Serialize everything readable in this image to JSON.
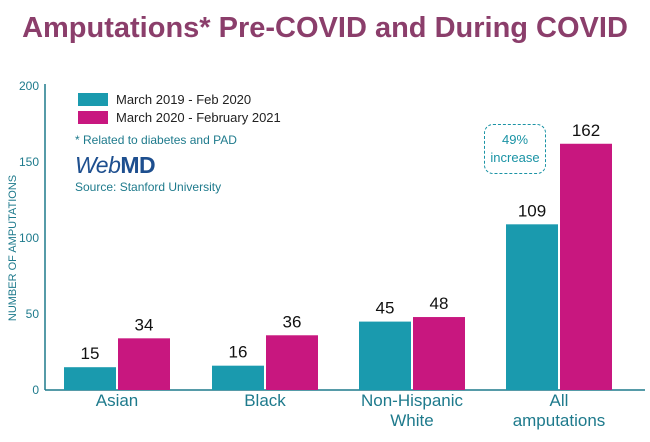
{
  "title": "Amputations* Pre-COVID and During COVID",
  "note": "* Related to diabetes and PAD",
  "logo": {
    "web": "Web",
    "md": "MD"
  },
  "source": "Source: Stanford University",
  "callout": {
    "line1": "49%",
    "line2": "increase"
  },
  "colors": {
    "series1": "#1a9aae",
    "series2": "#c8177f",
    "title": "#8b3e6b",
    "axis": "#1e7a8c"
  },
  "chart_data": {
    "type": "bar",
    "categories": [
      [
        "Asian"
      ],
      [
        "Black"
      ],
      [
        "Non-Hispanic",
        "White"
      ],
      [
        "All",
        "amputations"
      ]
    ],
    "series": [
      {
        "name": "March 2019 - Feb 2020",
        "values": [
          15,
          16,
          45,
          109
        ]
      },
      {
        "name": "March 2020 - February 2021",
        "values": [
          34,
          36,
          48,
          162
        ]
      }
    ],
    "ylabel": "NUMBER OF AMPUTATIONS",
    "ylim": [
      0,
      200
    ],
    "yticks": [
      0,
      50,
      100,
      150,
      200
    ],
    "grid": false,
    "legend_position": "top-left"
  }
}
